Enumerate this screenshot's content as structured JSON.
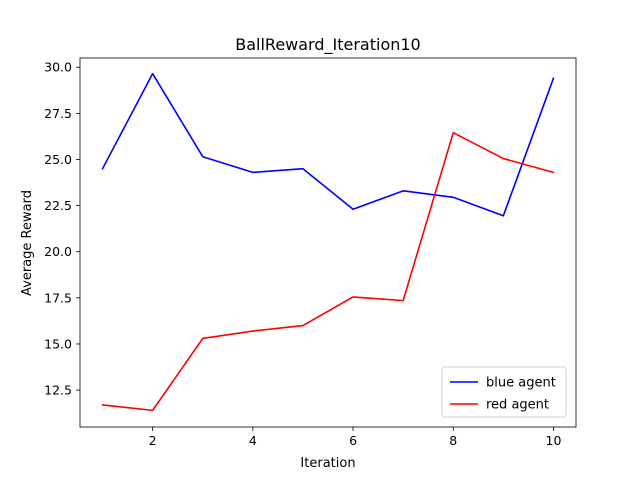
{
  "chart_data": {
    "type": "line",
    "title": "BallReward_Iteration10",
    "xlabel": "Iteration",
    "ylabel": "Average Reward",
    "xlim": [
      0.55,
      10.45
    ],
    "ylim": [
      10.5,
      30.5
    ],
    "xticks": [
      2,
      4,
      6,
      8,
      10
    ],
    "xtick_labels": [
      "2",
      "4",
      "6",
      "8",
      "10"
    ],
    "yticks": [
      12.5,
      15.0,
      17.5,
      20.0,
      22.5,
      25.0,
      27.5,
      30.0
    ],
    "ytick_labels": [
      "12.5",
      "15.0",
      "17.5",
      "20.0",
      "22.5",
      "25.0",
      "27.5",
      "30.0"
    ],
    "grid": false,
    "legend_position": "lower-right",
    "x": [
      1,
      2,
      3,
      4,
      5,
      6,
      7,
      8,
      9,
      10
    ],
    "series": [
      {
        "name": "blue agent",
        "color": "#0000ff",
        "values": [
          24.5,
          29.65,
          25.15,
          24.3,
          24.5,
          22.3,
          23.3,
          22.95,
          21.95,
          29.4
        ]
      },
      {
        "name": "red agent",
        "color": "#ff0000",
        "values": [
          11.7,
          11.4,
          15.3,
          15.7,
          16.0,
          17.55,
          17.35,
          26.45,
          25.05,
          24.3
        ]
      }
    ]
  }
}
